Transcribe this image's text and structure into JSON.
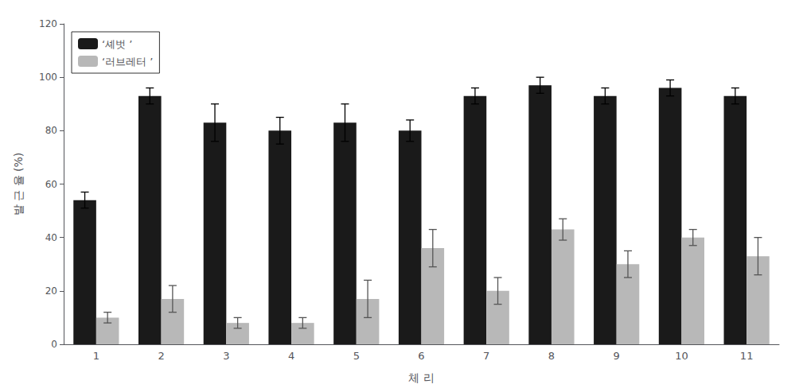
{
  "chart_data": {
    "type": "bar",
    "xlabel": "체 리",
    "ylabel": "발 근 율 (%)",
    "categories": [
      1,
      2,
      3,
      4,
      5,
      6,
      7,
      8,
      9,
      10,
      11
    ],
    "series": [
      {
        "name": "‘셰벗 ’",
        "color": "#1a1a1a",
        "values": [
          54,
          93,
          83,
          80,
          83,
          80,
          93,
          97,
          93,
          96,
          93
        ],
        "errors": [
          3,
          3,
          7,
          5,
          7,
          4,
          3,
          3,
          3,
          3,
          3
        ]
      },
      {
        "name": "‘러브레터 ’",
        "color": "#b8b8b8",
        "values": [
          10,
          17,
          8,
          8,
          17,
          36,
          20,
          43,
          30,
          40,
          33
        ],
        "errors": [
          2,
          5,
          2,
          2,
          7,
          7,
          5,
          4,
          5,
          3,
          7
        ]
      }
    ],
    "ylim": [
      0,
      120
    ],
    "yticks": [
      0,
      20,
      40,
      60,
      80,
      100,
      120
    ],
    "legend": "upper left",
    "grid": false
  }
}
